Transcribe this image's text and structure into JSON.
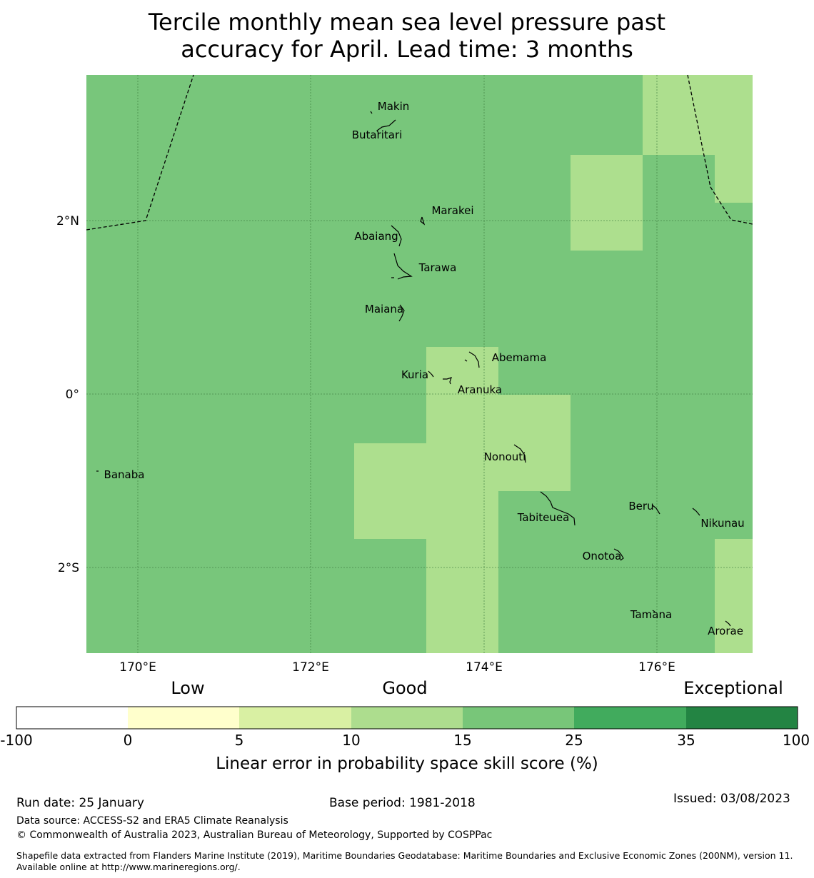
{
  "title": {
    "line1": "Tercile monthly mean sea level pressure past",
    "line2": "accuracy for April. Lead time: 3 months"
  },
  "map": {
    "lat_labels": [
      "2°N",
      "0°",
      "2°S"
    ],
    "lon_labels": [
      "170°E",
      "172°E",
      "174°E",
      "176°E"
    ],
    "fill_colors": {
      "base": "#78c67b",
      "light": "#addf8e"
    },
    "islands": [
      {
        "name": "Makin"
      },
      {
        "name": "Butaritari"
      },
      {
        "name": "Marakei"
      },
      {
        "name": "Abaiang"
      },
      {
        "name": "Tarawa"
      },
      {
        "name": "Maiana"
      },
      {
        "name": "Abemama"
      },
      {
        "name": "Kuria"
      },
      {
        "name": "Aranuka"
      },
      {
        "name": "Nonouti"
      },
      {
        "name": "Banaba"
      },
      {
        "name": "Tabiteuea"
      },
      {
        "name": "Beru"
      },
      {
        "name": "Nikunau"
      },
      {
        "name": "Onotoa"
      },
      {
        "name": "Tamana"
      },
      {
        "name": "Arorae"
      }
    ]
  },
  "legend": {
    "categories": [
      "Low",
      "Good",
      "Exceptional"
    ],
    "ticks": [
      "-100",
      "0",
      "5",
      "10",
      "15",
      "25",
      "35",
      "100"
    ],
    "colors": [
      "#ffffff",
      "#ffffcc",
      "#d9f0a3",
      "#addd8e",
      "#78c679",
      "#41ab5d",
      "#238443"
    ],
    "axis_label": "Linear error in probability space skill score (%)"
  },
  "footer": {
    "run_date": "Run date: 25 January",
    "base_period": "Base period: 1981-2018",
    "issued": "Issued: 03/08/2023",
    "data_source": "Data source: ACCESS-S2 and ERA5 Climate Reanalysis",
    "copyright": "© Commonwealth of Australia 2023, Australian Bureau of Meteorology, Supported by COSPPac",
    "shapefile": "Shapefile data extracted from Flanders Marine Institute (2019), Maritime Boundaries Geodatabase: Maritime Boundaries and Exclusive Economic Zones (200NM), version 11. Available online at http://www.marineregions.org/."
  }
}
